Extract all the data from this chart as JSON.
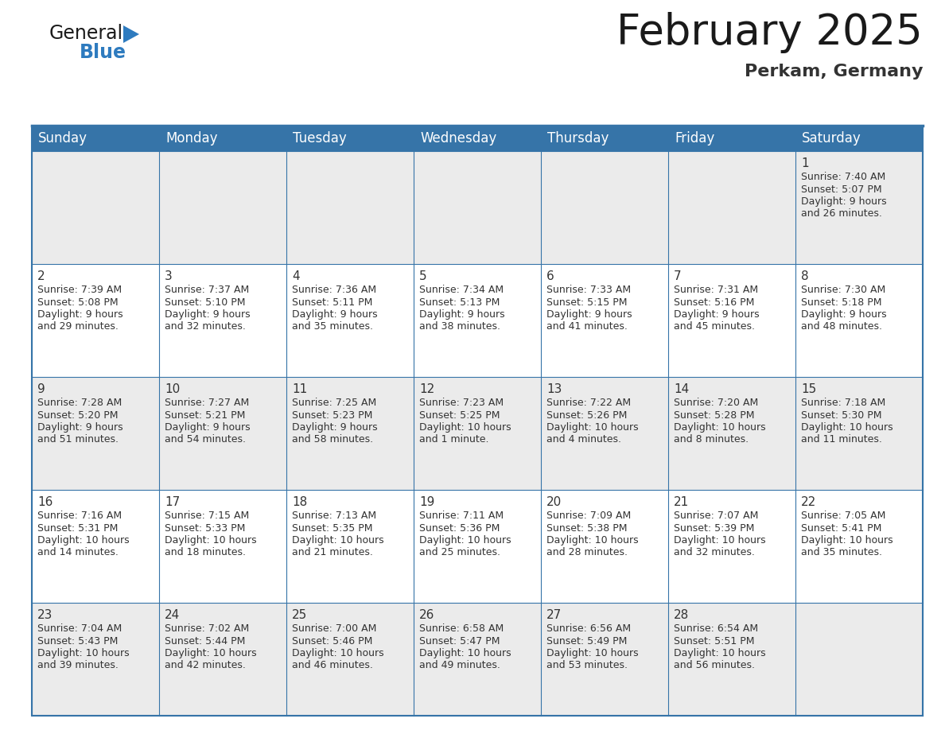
{
  "title": "February 2025",
  "subtitle": "Perkam, Germany",
  "header_bg": "#3674a8",
  "header_text_color": "#FFFFFF",
  "row_bg_odd": "#EBEBEB",
  "row_bg_even": "#FFFFFF",
  "day_number_color": "#333333",
  "info_text_color": "#333333",
  "border_color": "#3674a8",
  "logo_general_color": "#1a1a1a",
  "logo_blue_color": "#2E7BBF",
  "logo_triangle_color": "#2E7BBF",
  "weekdays": [
    "Sunday",
    "Monday",
    "Tuesday",
    "Wednesday",
    "Thursday",
    "Friday",
    "Saturday"
  ],
  "title_fontsize": 38,
  "subtitle_fontsize": 16,
  "header_fontsize": 12,
  "day_num_fontsize": 11,
  "info_fontsize": 9,
  "logo_fontsize": 17,
  "calendar": [
    [
      null,
      null,
      null,
      null,
      null,
      null,
      {
        "day": "1",
        "sunrise": "7:40 AM",
        "sunset": "5:07 PM",
        "daylight_line1": "Daylight: 9 hours",
        "daylight_line2": "and 26 minutes."
      }
    ],
    [
      {
        "day": "2",
        "sunrise": "7:39 AM",
        "sunset": "5:08 PM",
        "daylight_line1": "Daylight: 9 hours",
        "daylight_line2": "and 29 minutes."
      },
      {
        "day": "3",
        "sunrise": "7:37 AM",
        "sunset": "5:10 PM",
        "daylight_line1": "Daylight: 9 hours",
        "daylight_line2": "and 32 minutes."
      },
      {
        "day": "4",
        "sunrise": "7:36 AM",
        "sunset": "5:11 PM",
        "daylight_line1": "Daylight: 9 hours",
        "daylight_line2": "and 35 minutes."
      },
      {
        "day": "5",
        "sunrise": "7:34 AM",
        "sunset": "5:13 PM",
        "daylight_line1": "Daylight: 9 hours",
        "daylight_line2": "and 38 minutes."
      },
      {
        "day": "6",
        "sunrise": "7:33 AM",
        "sunset": "5:15 PM",
        "daylight_line1": "Daylight: 9 hours",
        "daylight_line2": "and 41 minutes."
      },
      {
        "day": "7",
        "sunrise": "7:31 AM",
        "sunset": "5:16 PM",
        "daylight_line1": "Daylight: 9 hours",
        "daylight_line2": "and 45 minutes."
      },
      {
        "day": "8",
        "sunrise": "7:30 AM",
        "sunset": "5:18 PM",
        "daylight_line1": "Daylight: 9 hours",
        "daylight_line2": "and 48 minutes."
      }
    ],
    [
      {
        "day": "9",
        "sunrise": "7:28 AM",
        "sunset": "5:20 PM",
        "daylight_line1": "Daylight: 9 hours",
        "daylight_line2": "and 51 minutes."
      },
      {
        "day": "10",
        "sunrise": "7:27 AM",
        "sunset": "5:21 PM",
        "daylight_line1": "Daylight: 9 hours",
        "daylight_line2": "and 54 minutes."
      },
      {
        "day": "11",
        "sunrise": "7:25 AM",
        "sunset": "5:23 PM",
        "daylight_line1": "Daylight: 9 hours",
        "daylight_line2": "and 58 minutes."
      },
      {
        "day": "12",
        "sunrise": "7:23 AM",
        "sunset": "5:25 PM",
        "daylight_line1": "Daylight: 10 hours",
        "daylight_line2": "and 1 minute."
      },
      {
        "day": "13",
        "sunrise": "7:22 AM",
        "sunset": "5:26 PM",
        "daylight_line1": "Daylight: 10 hours",
        "daylight_line2": "and 4 minutes."
      },
      {
        "day": "14",
        "sunrise": "7:20 AM",
        "sunset": "5:28 PM",
        "daylight_line1": "Daylight: 10 hours",
        "daylight_line2": "and 8 minutes."
      },
      {
        "day": "15",
        "sunrise": "7:18 AM",
        "sunset": "5:30 PM",
        "daylight_line1": "Daylight: 10 hours",
        "daylight_line2": "and 11 minutes."
      }
    ],
    [
      {
        "day": "16",
        "sunrise": "7:16 AM",
        "sunset": "5:31 PM",
        "daylight_line1": "Daylight: 10 hours",
        "daylight_line2": "and 14 minutes."
      },
      {
        "day": "17",
        "sunrise": "7:15 AM",
        "sunset": "5:33 PM",
        "daylight_line1": "Daylight: 10 hours",
        "daylight_line2": "and 18 minutes."
      },
      {
        "day": "18",
        "sunrise": "7:13 AM",
        "sunset": "5:35 PM",
        "daylight_line1": "Daylight: 10 hours",
        "daylight_line2": "and 21 minutes."
      },
      {
        "day": "19",
        "sunrise": "7:11 AM",
        "sunset": "5:36 PM",
        "daylight_line1": "Daylight: 10 hours",
        "daylight_line2": "and 25 minutes."
      },
      {
        "day": "20",
        "sunrise": "7:09 AM",
        "sunset": "5:38 PM",
        "daylight_line1": "Daylight: 10 hours",
        "daylight_line2": "and 28 minutes."
      },
      {
        "day": "21",
        "sunrise": "7:07 AM",
        "sunset": "5:39 PM",
        "daylight_line1": "Daylight: 10 hours",
        "daylight_line2": "and 32 minutes."
      },
      {
        "day": "22",
        "sunrise": "7:05 AM",
        "sunset": "5:41 PM",
        "daylight_line1": "Daylight: 10 hours",
        "daylight_line2": "and 35 minutes."
      }
    ],
    [
      {
        "day": "23",
        "sunrise": "7:04 AM",
        "sunset": "5:43 PM",
        "daylight_line1": "Daylight: 10 hours",
        "daylight_line2": "and 39 minutes."
      },
      {
        "day": "24",
        "sunrise": "7:02 AM",
        "sunset": "5:44 PM",
        "daylight_line1": "Daylight: 10 hours",
        "daylight_line2": "and 42 minutes."
      },
      {
        "day": "25",
        "sunrise": "7:00 AM",
        "sunset": "5:46 PM",
        "daylight_line1": "Daylight: 10 hours",
        "daylight_line2": "and 46 minutes."
      },
      {
        "day": "26",
        "sunrise": "6:58 AM",
        "sunset": "5:47 PM",
        "daylight_line1": "Daylight: 10 hours",
        "daylight_line2": "and 49 minutes."
      },
      {
        "day": "27",
        "sunrise": "6:56 AM",
        "sunset": "5:49 PM",
        "daylight_line1": "Daylight: 10 hours",
        "daylight_line2": "and 53 minutes."
      },
      {
        "day": "28",
        "sunrise": "6:54 AM",
        "sunset": "5:51 PM",
        "daylight_line1": "Daylight: 10 hours",
        "daylight_line2": "and 56 minutes."
      },
      null
    ]
  ]
}
